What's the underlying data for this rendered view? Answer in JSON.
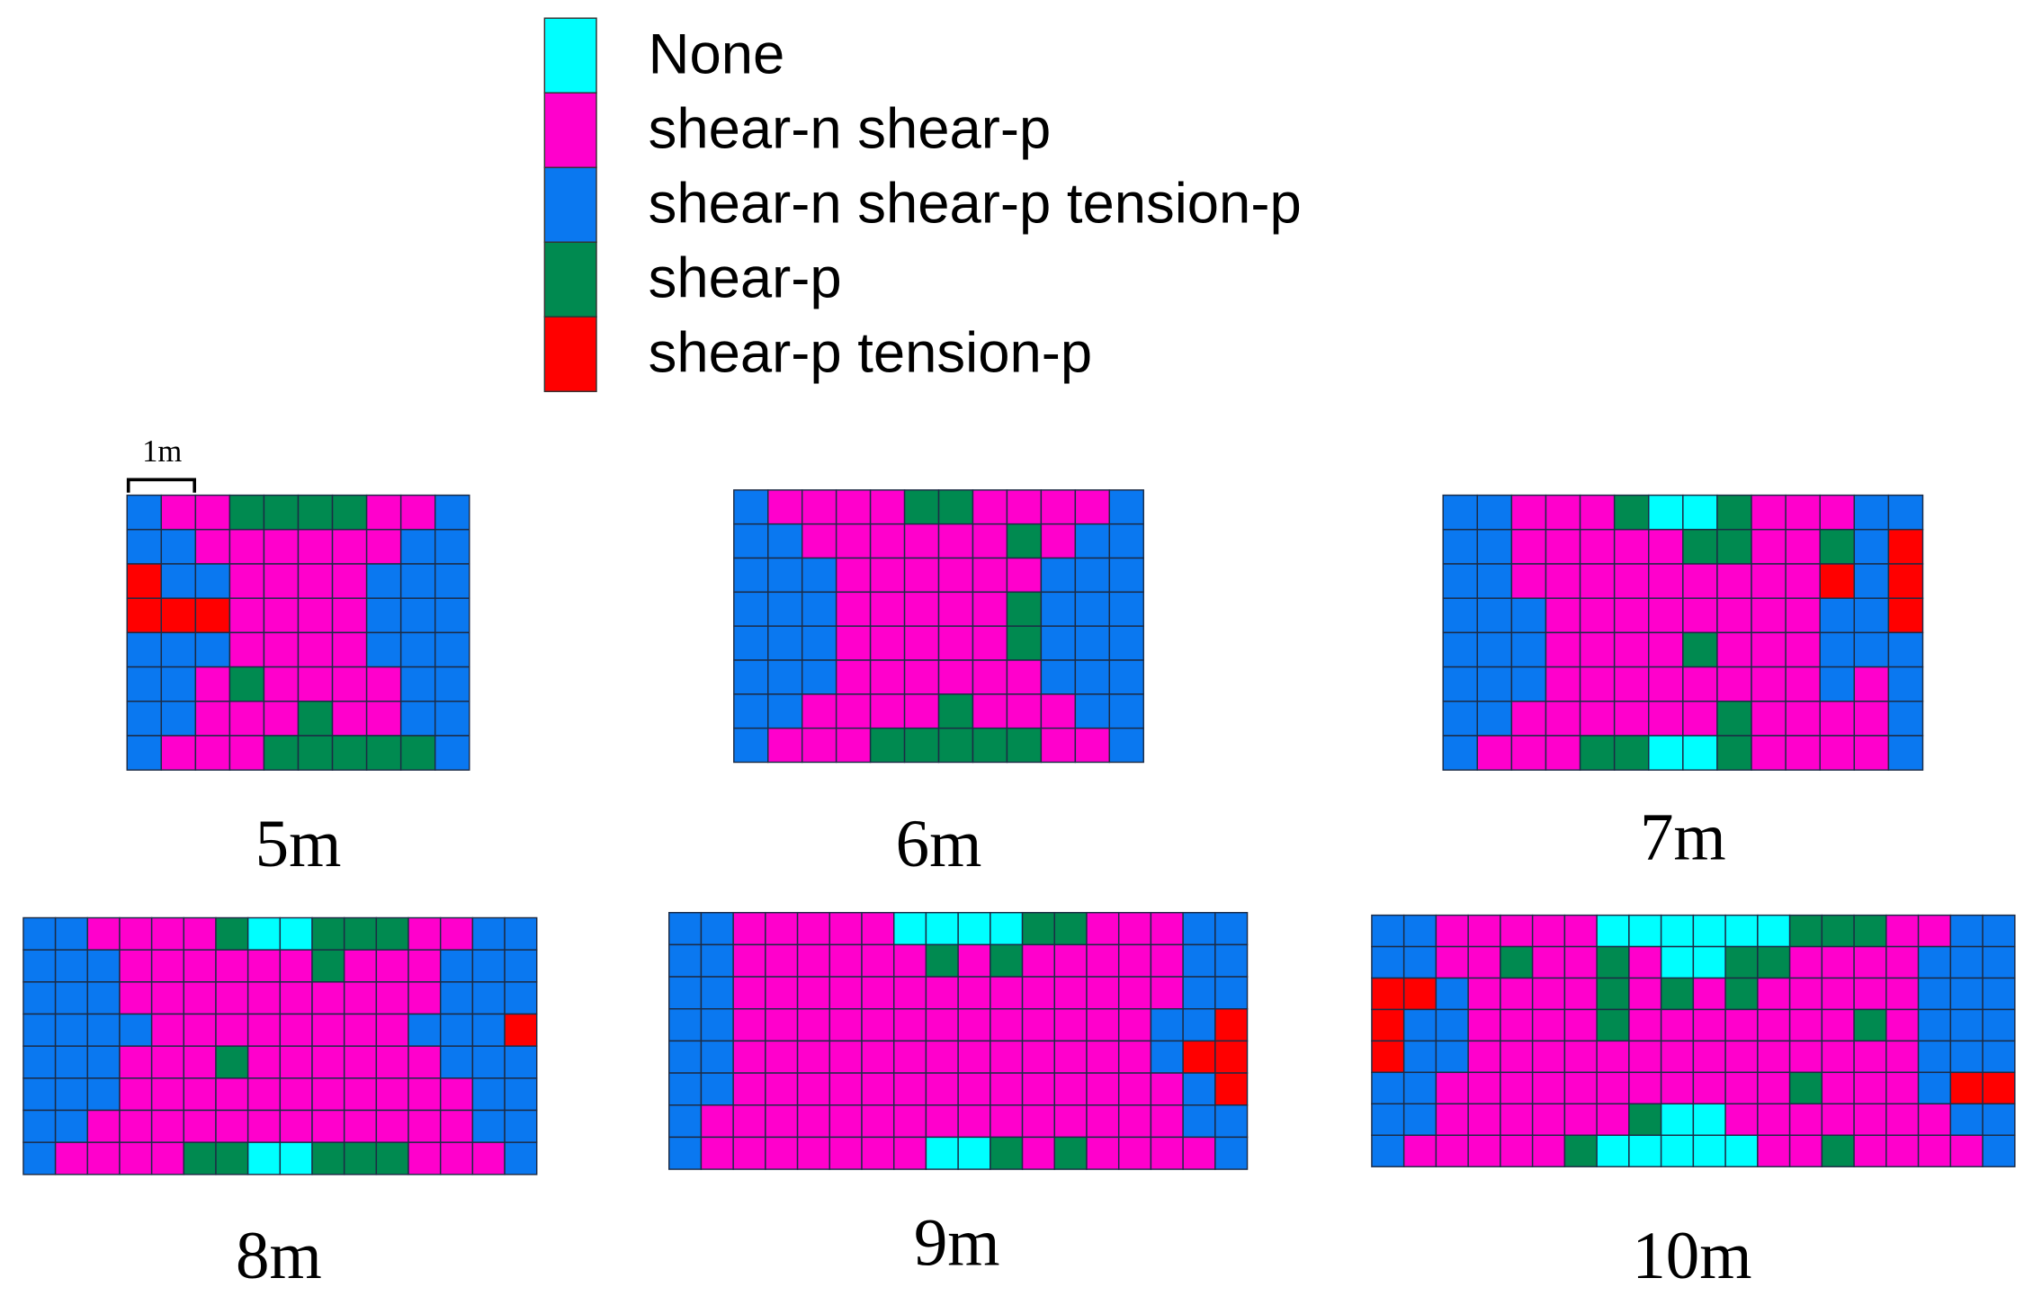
{
  "legend": [
    {
      "label": "None",
      "color": "#00ffff"
    },
    {
      "label": "shear-n shear-p",
      "color": "#ff00cc"
    },
    {
      "label": "shear-n shear-p tension-p",
      "color": "#0a78f0"
    },
    {
      "label": "shear-p",
      "color": "#008a50"
    },
    {
      "label": "shear-p tension-p",
      "color": "#ff0000"
    }
  ],
  "scale_label": "1m",
  "panels": [
    {
      "label": "5m",
      "cells": [
        [
          2,
          1,
          1,
          3,
          3,
          3,
          3,
          1,
          1,
          2
        ],
        [
          2,
          2,
          1,
          1,
          1,
          1,
          1,
          1,
          2,
          2
        ],
        [
          4,
          2,
          2,
          1,
          1,
          1,
          1,
          2,
          2,
          2
        ],
        [
          4,
          4,
          4,
          1,
          1,
          1,
          1,
          2,
          2,
          2
        ],
        [
          2,
          2,
          2,
          1,
          1,
          1,
          1,
          2,
          2,
          2
        ],
        [
          2,
          2,
          1,
          3,
          1,
          1,
          1,
          1,
          2,
          2
        ],
        [
          2,
          2,
          1,
          1,
          1,
          3,
          1,
          1,
          2,
          2
        ],
        [
          2,
          1,
          1,
          1,
          3,
          3,
          3,
          3,
          3,
          2
        ]
      ]
    },
    {
      "label": "6m",
      "cells": [
        [
          2,
          1,
          1,
          1,
          1,
          3,
          3,
          1,
          1,
          1,
          1,
          2
        ],
        [
          2,
          2,
          1,
          1,
          1,
          1,
          1,
          1,
          3,
          1,
          2,
          2
        ],
        [
          2,
          2,
          2,
          1,
          1,
          1,
          1,
          1,
          1,
          2,
          2,
          2
        ],
        [
          2,
          2,
          2,
          1,
          1,
          1,
          1,
          1,
          3,
          2,
          2,
          2
        ],
        [
          2,
          2,
          2,
          1,
          1,
          1,
          1,
          1,
          3,
          2,
          2,
          2
        ],
        [
          2,
          2,
          2,
          1,
          1,
          1,
          1,
          1,
          1,
          2,
          2,
          2
        ],
        [
          2,
          2,
          1,
          1,
          1,
          1,
          3,
          1,
          1,
          1,
          2,
          2
        ],
        [
          2,
          1,
          1,
          1,
          3,
          3,
          3,
          3,
          3,
          1,
          1,
          2
        ]
      ]
    },
    {
      "label": "7m",
      "cells": [
        [
          2,
          2,
          1,
          1,
          1,
          3,
          0,
          0,
          3,
          1,
          1,
          1,
          2,
          2
        ],
        [
          2,
          2,
          1,
          1,
          1,
          1,
          1,
          3,
          3,
          1,
          1,
          3,
          2,
          4
        ],
        [
          2,
          2,
          1,
          1,
          1,
          1,
          1,
          1,
          1,
          1,
          1,
          4,
          2,
          4
        ],
        [
          2,
          2,
          2,
          1,
          1,
          1,
          1,
          1,
          1,
          1,
          1,
          2,
          2,
          4
        ],
        [
          2,
          2,
          2,
          1,
          1,
          1,
          1,
          3,
          1,
          1,
          1,
          2,
          2,
          2
        ],
        [
          2,
          2,
          2,
          1,
          1,
          1,
          1,
          1,
          1,
          1,
          1,
          2,
          1,
          2
        ],
        [
          2,
          2,
          1,
          1,
          1,
          1,
          1,
          1,
          3,
          1,
          1,
          1,
          1,
          2
        ],
        [
          2,
          1,
          1,
          1,
          3,
          3,
          0,
          0,
          3,
          1,
          1,
          1,
          1,
          2
        ]
      ]
    },
    {
      "label": "8m",
      "cells": [
        [
          2,
          2,
          1,
          1,
          1,
          1,
          3,
          0,
          0,
          3,
          3,
          3,
          1,
          1,
          2,
          2
        ],
        [
          2,
          2,
          2,
          1,
          1,
          1,
          1,
          1,
          1,
          3,
          1,
          1,
          1,
          2,
          2,
          2
        ],
        [
          2,
          2,
          2,
          1,
          1,
          1,
          1,
          1,
          1,
          1,
          1,
          1,
          1,
          2,
          2,
          2
        ],
        [
          2,
          2,
          2,
          2,
          1,
          1,
          1,
          1,
          1,
          1,
          1,
          1,
          2,
          2,
          2,
          4
        ],
        [
          2,
          2,
          2,
          1,
          1,
          1,
          3,
          1,
          1,
          1,
          1,
          1,
          1,
          2,
          2,
          2
        ],
        [
          2,
          2,
          2,
          1,
          1,
          1,
          1,
          1,
          1,
          1,
          1,
          1,
          1,
          1,
          2,
          2
        ],
        [
          2,
          2,
          1,
          1,
          1,
          1,
          1,
          1,
          1,
          1,
          1,
          1,
          1,
          1,
          2,
          2
        ],
        [
          2,
          1,
          1,
          1,
          1,
          3,
          3,
          0,
          0,
          3,
          3,
          3,
          1,
          1,
          1,
          2
        ]
      ]
    },
    {
      "label": "9m",
      "cells": [
        [
          2,
          2,
          1,
          1,
          1,
          1,
          1,
          0,
          0,
          0,
          0,
          3,
          3,
          1,
          1,
          1,
          2,
          2
        ],
        [
          2,
          2,
          1,
          1,
          1,
          1,
          1,
          1,
          3,
          1,
          3,
          1,
          1,
          1,
          1,
          1,
          2,
          2
        ],
        [
          2,
          2,
          1,
          1,
          1,
          1,
          1,
          1,
          1,
          1,
          1,
          1,
          1,
          1,
          1,
          1,
          2,
          2
        ],
        [
          2,
          2,
          1,
          1,
          1,
          1,
          1,
          1,
          1,
          1,
          1,
          1,
          1,
          1,
          1,
          2,
          2,
          4
        ],
        [
          2,
          2,
          1,
          1,
          1,
          1,
          1,
          1,
          1,
          1,
          1,
          1,
          1,
          1,
          1,
          2,
          4,
          4
        ],
        [
          2,
          2,
          1,
          1,
          1,
          1,
          1,
          1,
          1,
          1,
          1,
          1,
          1,
          1,
          1,
          1,
          2,
          4
        ],
        [
          2,
          1,
          1,
          1,
          1,
          1,
          1,
          1,
          1,
          1,
          1,
          1,
          1,
          1,
          1,
          1,
          2,
          2
        ],
        [
          2,
          1,
          1,
          1,
          1,
          1,
          1,
          1,
          0,
          0,
          3,
          1,
          3,
          1,
          1,
          1,
          1,
          2
        ]
      ]
    },
    {
      "label": "10m",
      "cells": [
        [
          2,
          2,
          1,
          1,
          1,
          1,
          1,
          0,
          0,
          0,
          0,
          0,
          0,
          3,
          3,
          3,
          1,
          1,
          2,
          2
        ],
        [
          2,
          2,
          1,
          1,
          3,
          1,
          1,
          3,
          1,
          0,
          0,
          3,
          3,
          1,
          1,
          1,
          1,
          2,
          2,
          2
        ],
        [
          4,
          4,
          2,
          1,
          1,
          1,
          1,
          3,
          1,
          3,
          1,
          3,
          1,
          1,
          1,
          1,
          1,
          2,
          2,
          2
        ],
        [
          4,
          2,
          2,
          1,
          1,
          1,
          1,
          3,
          1,
          1,
          1,
          1,
          1,
          1,
          1,
          3,
          1,
          2,
          2,
          2
        ],
        [
          4,
          2,
          2,
          1,
          1,
          1,
          1,
          1,
          1,
          1,
          1,
          1,
          1,
          1,
          1,
          1,
          1,
          2,
          2,
          2
        ],
        [
          2,
          2,
          1,
          1,
          1,
          1,
          1,
          1,
          1,
          1,
          1,
          1,
          1,
          3,
          1,
          1,
          1,
          2,
          4,
          4
        ],
        [
          2,
          2,
          1,
          1,
          1,
          1,
          1,
          1,
          3,
          0,
          0,
          1,
          1,
          1,
          1,
          1,
          1,
          1,
          2,
          2
        ],
        [
          2,
          1,
          1,
          1,
          1,
          1,
          3,
          0,
          0,
          0,
          0,
          0,
          1,
          1,
          3,
          1,
          1,
          1,
          1,
          2
        ]
      ]
    }
  ]
}
